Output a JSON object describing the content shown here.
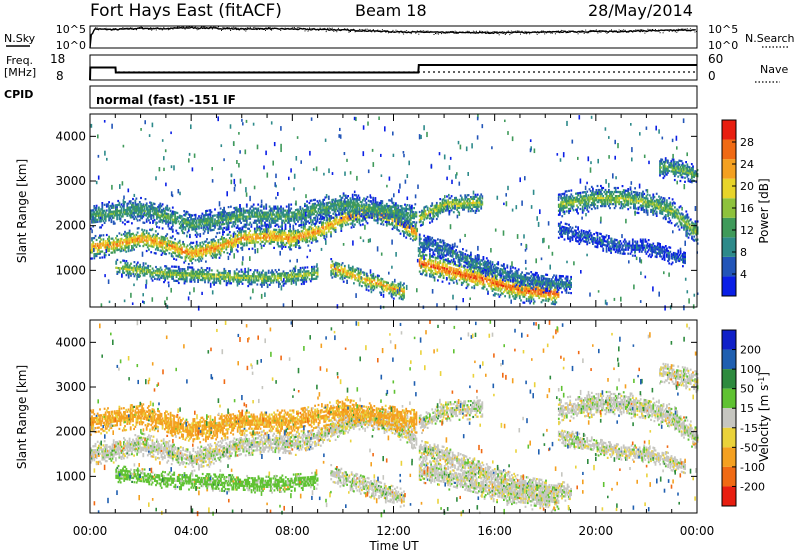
{
  "header": {
    "station": "Fort Hays East (fitACF)",
    "beam": "Beam 18",
    "date": "28/May/2014"
  },
  "labels": {
    "nsky": "N.Sky",
    "nsearch": "N.Search",
    "freq_line1": "Freq.",
    "freq_line2": "[MHz]",
    "nave": "Nave",
    "cpid": "CPID",
    "mode": "normal (fast) -151 IF",
    "xlabel": "Time UT"
  },
  "noise_ticks": {
    "top": "10^5",
    "bottom": "10^0"
  },
  "freq_ticks": [
    "18",
    "8"
  ],
  "nave_ticks": [
    "60",
    "0"
  ],
  "time_ticks": [
    "00:00",
    "04:00",
    "08:00",
    "12:00",
    "16:00",
    "20:00",
    "00:00"
  ],
  "colors": {
    "power": [
      "#0a1fe6",
      "#2255b8",
      "#2d8a8a",
      "#3f9a5a",
      "#8ec23c",
      "#e8d42a",
      "#f4a020",
      "#f06a14",
      "#e81e10"
    ],
    "velocity": [
      "#e81e10",
      "#f06a14",
      "#f4a020",
      "#ead23a",
      "#c6c6c0",
      "#c6c6c0",
      "#5fc232",
      "#2d8a3e",
      "#1f5fb0",
      "#1020c8"
    ],
    "ground_scatter": "#c6c6c0"
  },
  "chart_data": [
    {
      "type": "line",
      "title": "",
      "xlabel": "",
      "ylabel": "N.Sky",
      "x_range_hours": [
        0,
        24
      ],
      "log_scale": true,
      "ylim": [
        1,
        100000
      ],
      "series": [
        {
          "name": "N.Sky",
          "x": [
            0,
            0.1,
            0.2,
            1,
            2,
            3,
            4,
            5,
            6,
            7,
            8,
            9,
            10,
            11,
            12,
            13,
            14,
            15,
            16,
            17,
            18,
            19,
            20,
            21,
            22,
            23,
            24
          ],
          "y": [
            1,
            2000,
            20000,
            15000,
            30000,
            25000,
            40000,
            30000,
            20000,
            25000,
            20000,
            18000,
            12000,
            8000,
            5000,
            4000,
            3500,
            3000,
            3000,
            3500,
            4000,
            5000,
            6000,
            6000,
            8000,
            10000,
            12000
          ]
        }
      ]
    },
    {
      "type": "line",
      "title": "",
      "xlabel": "",
      "ylabel": "Freq. [MHz]",
      "x_range_hours": [
        0,
        24
      ],
      "ylim": [
        8,
        18
      ],
      "series": [
        {
          "name": "Freq.",
          "x": [
            0,
            0.01,
            1.01,
            1.02,
            12.98,
            13.0,
            24
          ],
          "y": [
            8,
            13,
            13,
            11,
            11,
            14,
            14
          ]
        }
      ]
    },
    {
      "type": "heatmap",
      "title": "",
      "xlabel": "",
      "ylabel": "Slant Range [km]",
      "xlim": [
        0,
        24
      ],
      "ylim": [
        180,
        4500
      ],
      "xticks": [
        "00:00",
        "04:00",
        "08:00",
        "12:00",
        "16:00",
        "20:00",
        "00:00"
      ],
      "yticks": [
        1000,
        2000,
        3000,
        4000
      ],
      "colorbar": {
        "label": "Power [dB]",
        "ticks": [
          4,
          8,
          12,
          16,
          20,
          24,
          28
        ],
        "range": [
          0,
          32
        ]
      },
      "bands": [
        {
          "t": [
            0,
            1,
            2,
            3,
            4,
            5,
            6,
            7,
            8,
            9,
            10,
            11,
            12,
            12.9
          ],
          "r": [
            1500,
            1550,
            1700,
            1550,
            1350,
            1500,
            1700,
            1750,
            1700,
            1850,
            2150,
            2300,
            2150,
            1800
          ],
          "w": 160,
          "v": 25
        },
        {
          "t": [
            0,
            2,
            4,
            6,
            8,
            10,
            12.9
          ],
          "r": [
            2200,
            2350,
            2000,
            2200,
            2200,
            2450,
            2200
          ],
          "w": 180,
          "v": 13
        },
        {
          "t": [
            1,
            3,
            5,
            7,
            9
          ],
          "r": [
            1050,
            900,
            850,
            800,
            900
          ],
          "w": 120,
          "v": 17
        },
        {
          "t": [
            9.5,
            10.5,
            11.5,
            12.4
          ],
          "r": [
            1050,
            850,
            650,
            500
          ],
          "w": 140,
          "v": 23
        },
        {
          "t": [
            13,
            14,
            15,
            16,
            17,
            18,
            18.5
          ],
          "r": [
            1150,
            1000,
            850,
            700,
            550,
            500,
            450
          ],
          "w": 180,
          "v": 28
        },
        {
          "t": [
            13,
            14,
            15,
            16,
            17,
            18,
            19
          ],
          "r": [
            1600,
            1450,
            1200,
            1000,
            800,
            700,
            650
          ],
          "w": 140,
          "v": 9
        },
        {
          "t": [
            13,
            14,
            15.5
          ],
          "r": [
            2150,
            2450,
            2500
          ],
          "w": 140,
          "v": 18
        },
        {
          "t": [
            18.5,
            20,
            21,
            22,
            23,
            24
          ],
          "r": [
            2450,
            2600,
            2600,
            2500,
            2300,
            1800
          ],
          "w": 170,
          "v": 16
        },
        {
          "t": [
            18.5,
            20,
            21,
            22,
            23.5
          ],
          "r": [
            1900,
            1650,
            1500,
            1500,
            1200
          ],
          "w": 120,
          "v": 6
        },
        {
          "t": [
            22.5,
            23.5,
            24
          ],
          "r": [
            3300,
            3200,
            3100
          ],
          "w": 150,
          "v": 14
        }
      ]
    },
    {
      "type": "heatmap",
      "title": "",
      "xlabel": "Time UT",
      "ylabel": "Slant Range [km]",
      "xlim": [
        0,
        24
      ],
      "ylim": [
        180,
        4500
      ],
      "xticks": [
        "00:00",
        "04:00",
        "08:00",
        "12:00",
        "16:00",
        "20:00",
        "00:00"
      ],
      "yticks": [
        1000,
        2000,
        3000,
        4000
      ],
      "colorbar": {
        "label": "Velocity [m s^-1]",
        "ticks": [
          200,
          100,
          50,
          15,
          -15,
          -50,
          -100,
          -200
        ],
        "range": [
          -250,
          250
        ]
      },
      "bands": [
        {
          "t": [
            0,
            1,
            2,
            3,
            4,
            5,
            6,
            7,
            8,
            9,
            10,
            11,
            12,
            12.9
          ],
          "r": [
            1500,
            1550,
            1700,
            1550,
            1350,
            1500,
            1700,
            1750,
            1700,
            1850,
            2150,
            2300,
            2150,
            1800
          ],
          "w": 160,
          "v": 0
        },
        {
          "t": [
            0,
            2,
            4,
            6,
            8,
            10,
            12.9
          ],
          "r": [
            2200,
            2350,
            2000,
            2200,
            2200,
            2450,
            2200
          ],
          "w": 180,
          "v": -60
        },
        {
          "t": [
            1,
            3,
            5,
            7,
            9
          ],
          "r": [
            1050,
            900,
            850,
            800,
            900
          ],
          "w": 120,
          "v": 30
        },
        {
          "t": [
            9.5,
            10.5,
            11.5,
            12.4
          ],
          "r": [
            1050,
            850,
            650,
            500
          ],
          "w": 140,
          "v": 0
        },
        {
          "t": [
            13,
            14,
            15,
            16,
            17,
            18,
            18.5
          ],
          "r": [
            1150,
            1000,
            850,
            700,
            550,
            500,
            450
          ],
          "w": 180,
          "v": 0
        },
        {
          "t": [
            13,
            14,
            15,
            16,
            17,
            18,
            19
          ],
          "r": [
            1600,
            1450,
            1200,
            1000,
            800,
            700,
            650
          ],
          "w": 140,
          "v": 0
        },
        {
          "t": [
            13,
            14,
            15.5
          ],
          "r": [
            2150,
            2450,
            2500
          ],
          "w": 140,
          "v": 0
        },
        {
          "t": [
            18.5,
            20,
            21,
            22,
            23,
            24
          ],
          "r": [
            2450,
            2600,
            2600,
            2500,
            2300,
            1800
          ],
          "w": 170,
          "v": 0
        },
        {
          "t": [
            18.5,
            20,
            21,
            22,
            23.5
          ],
          "r": [
            1900,
            1650,
            1500,
            1500,
            1200
          ],
          "w": 120,
          "v": 0
        },
        {
          "t": [
            22.5,
            23.5,
            24
          ],
          "r": [
            3300,
            3200,
            3100
          ],
          "w": 150,
          "v": 0
        }
      ]
    }
  ]
}
